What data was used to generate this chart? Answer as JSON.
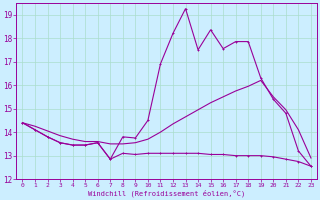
{
  "xlabel": "Windchill (Refroidissement éolien,°C)",
  "bg_color": "#cceeff",
  "line_color": "#990099",
  "grid_color": "#aaddcc",
  "xlim": [
    -0.5,
    23.5
  ],
  "ylim": [
    12,
    19.5
  ],
  "yticks": [
    12,
    13,
    14,
    15,
    16,
    17,
    18,
    19
  ],
  "xticks": [
    0,
    1,
    2,
    3,
    4,
    5,
    6,
    7,
    8,
    9,
    10,
    11,
    12,
    13,
    14,
    15,
    16,
    17,
    18,
    19,
    20,
    21,
    22,
    23
  ],
  "line1_x": [
    0,
    1,
    2,
    3,
    4,
    5,
    6,
    7,
    8,
    9,
    10,
    11,
    12,
    13,
    14,
    15,
    16,
    17,
    18,
    19,
    20,
    21,
    22,
    23
  ],
  "line1_y": [
    14.4,
    14.1,
    13.8,
    13.55,
    13.45,
    13.45,
    13.55,
    12.85,
    13.1,
    13.05,
    13.1,
    13.1,
    13.1,
    13.1,
    13.1,
    13.05,
    13.05,
    13.0,
    13.0,
    13.0,
    12.95,
    12.85,
    12.75,
    12.55
  ],
  "line2_x": [
    0,
    1,
    2,
    3,
    4,
    5,
    6,
    7,
    8,
    9,
    10,
    11,
    12,
    13,
    14,
    15,
    16,
    17,
    18,
    19,
    20,
    21,
    22,
    23
  ],
  "line2_y": [
    14.4,
    14.1,
    13.8,
    13.55,
    13.45,
    13.45,
    13.55,
    12.85,
    13.8,
    13.75,
    14.5,
    16.9,
    18.2,
    19.25,
    17.5,
    18.35,
    17.55,
    17.85,
    17.85,
    16.3,
    15.4,
    14.8,
    13.2,
    12.55
  ],
  "line3_x": [
    0,
    1,
    2,
    3,
    4,
    5,
    6,
    7,
    8,
    9,
    10,
    11,
    12,
    13,
    14,
    15,
    16,
    17,
    18,
    19,
    20,
    21,
    22,
    23
  ],
  "line3_y": [
    14.4,
    14.25,
    14.05,
    13.85,
    13.7,
    13.6,
    13.6,
    13.5,
    13.5,
    13.55,
    13.7,
    14.0,
    14.35,
    14.65,
    14.95,
    15.25,
    15.5,
    15.75,
    15.95,
    16.2,
    15.5,
    14.95,
    14.1,
    12.9
  ]
}
